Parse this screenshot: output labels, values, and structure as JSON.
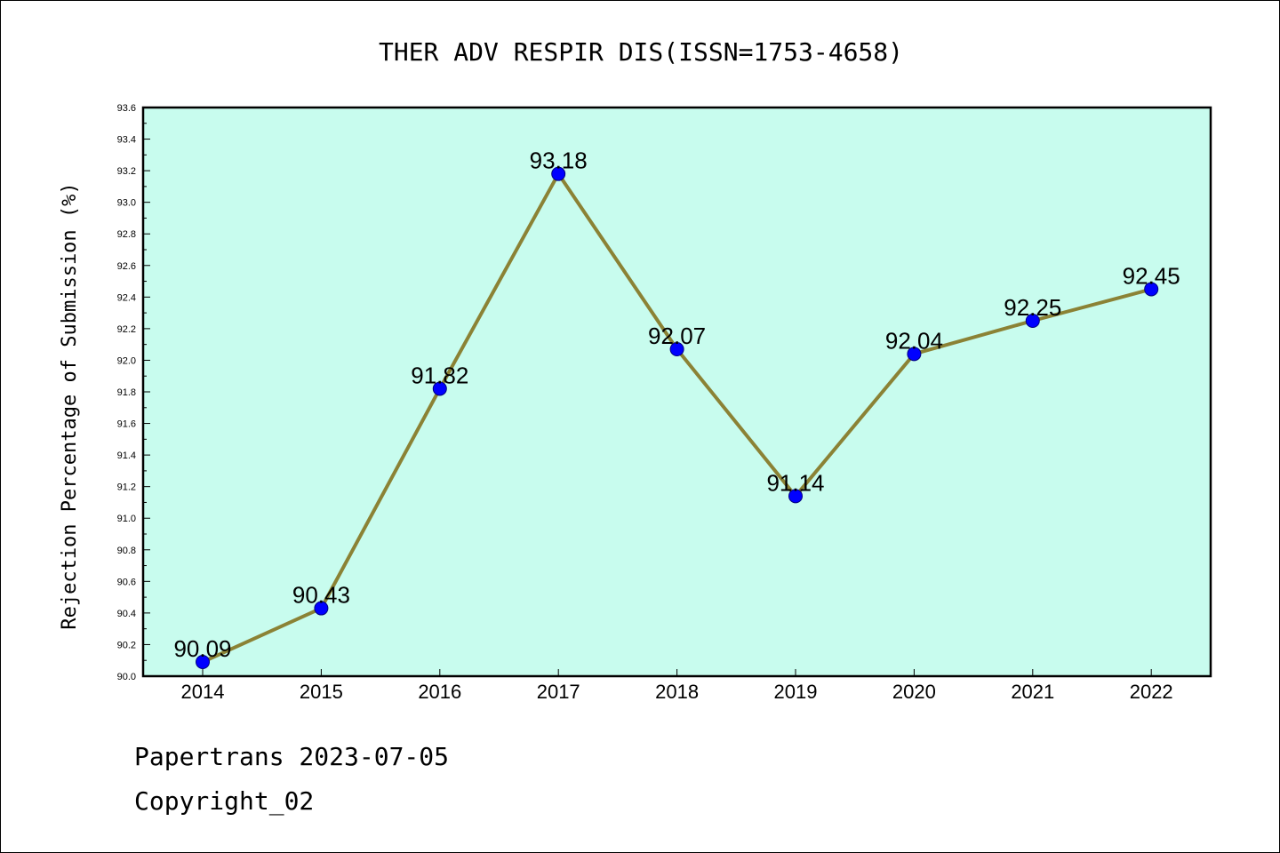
{
  "chart_data": {
    "type": "line",
    "title": "THER ADV RESPIR DIS(ISSN=1753-4658)",
    "xlabel": "",
    "ylabel": "Rejection Percentage of Submission (%)",
    "categories": [
      "2014",
      "2015",
      "2016",
      "2017",
      "2018",
      "2019",
      "2020",
      "2021",
      "2022"
    ],
    "series": [
      {
        "values": [
          90.09,
          90.43,
          91.82,
          93.18,
          92.07,
          91.14,
          92.04,
          92.25,
          92.45
        ]
      }
    ],
    "data_labels": [
      "90.09",
      "90.43",
      "91.82",
      "93.18",
      "92.07",
      "91.14",
      "92.04",
      "92.25",
      "92.45"
    ],
    "ylim": [
      90.0,
      93.6
    ],
    "yticks": [
      "90.0",
      "90.2",
      "90.4",
      "90.6",
      "90.8",
      "91.0",
      "91.2",
      "91.4",
      "91.6",
      "91.8",
      "92.0",
      "92.2",
      "92.4",
      "92.6",
      "92.8",
      "93.0",
      "93.2",
      "93.4",
      "93.6"
    ],
    "grid": false,
    "legend": "none",
    "colors": {
      "plot_background": "#c8fcee",
      "line": "#8b8235",
      "marker": "#0000ff",
      "marker_edge": "#000080"
    }
  },
  "footer": {
    "source": "Papertrans 2023-07-05",
    "copyright": "Copyright_02"
  }
}
